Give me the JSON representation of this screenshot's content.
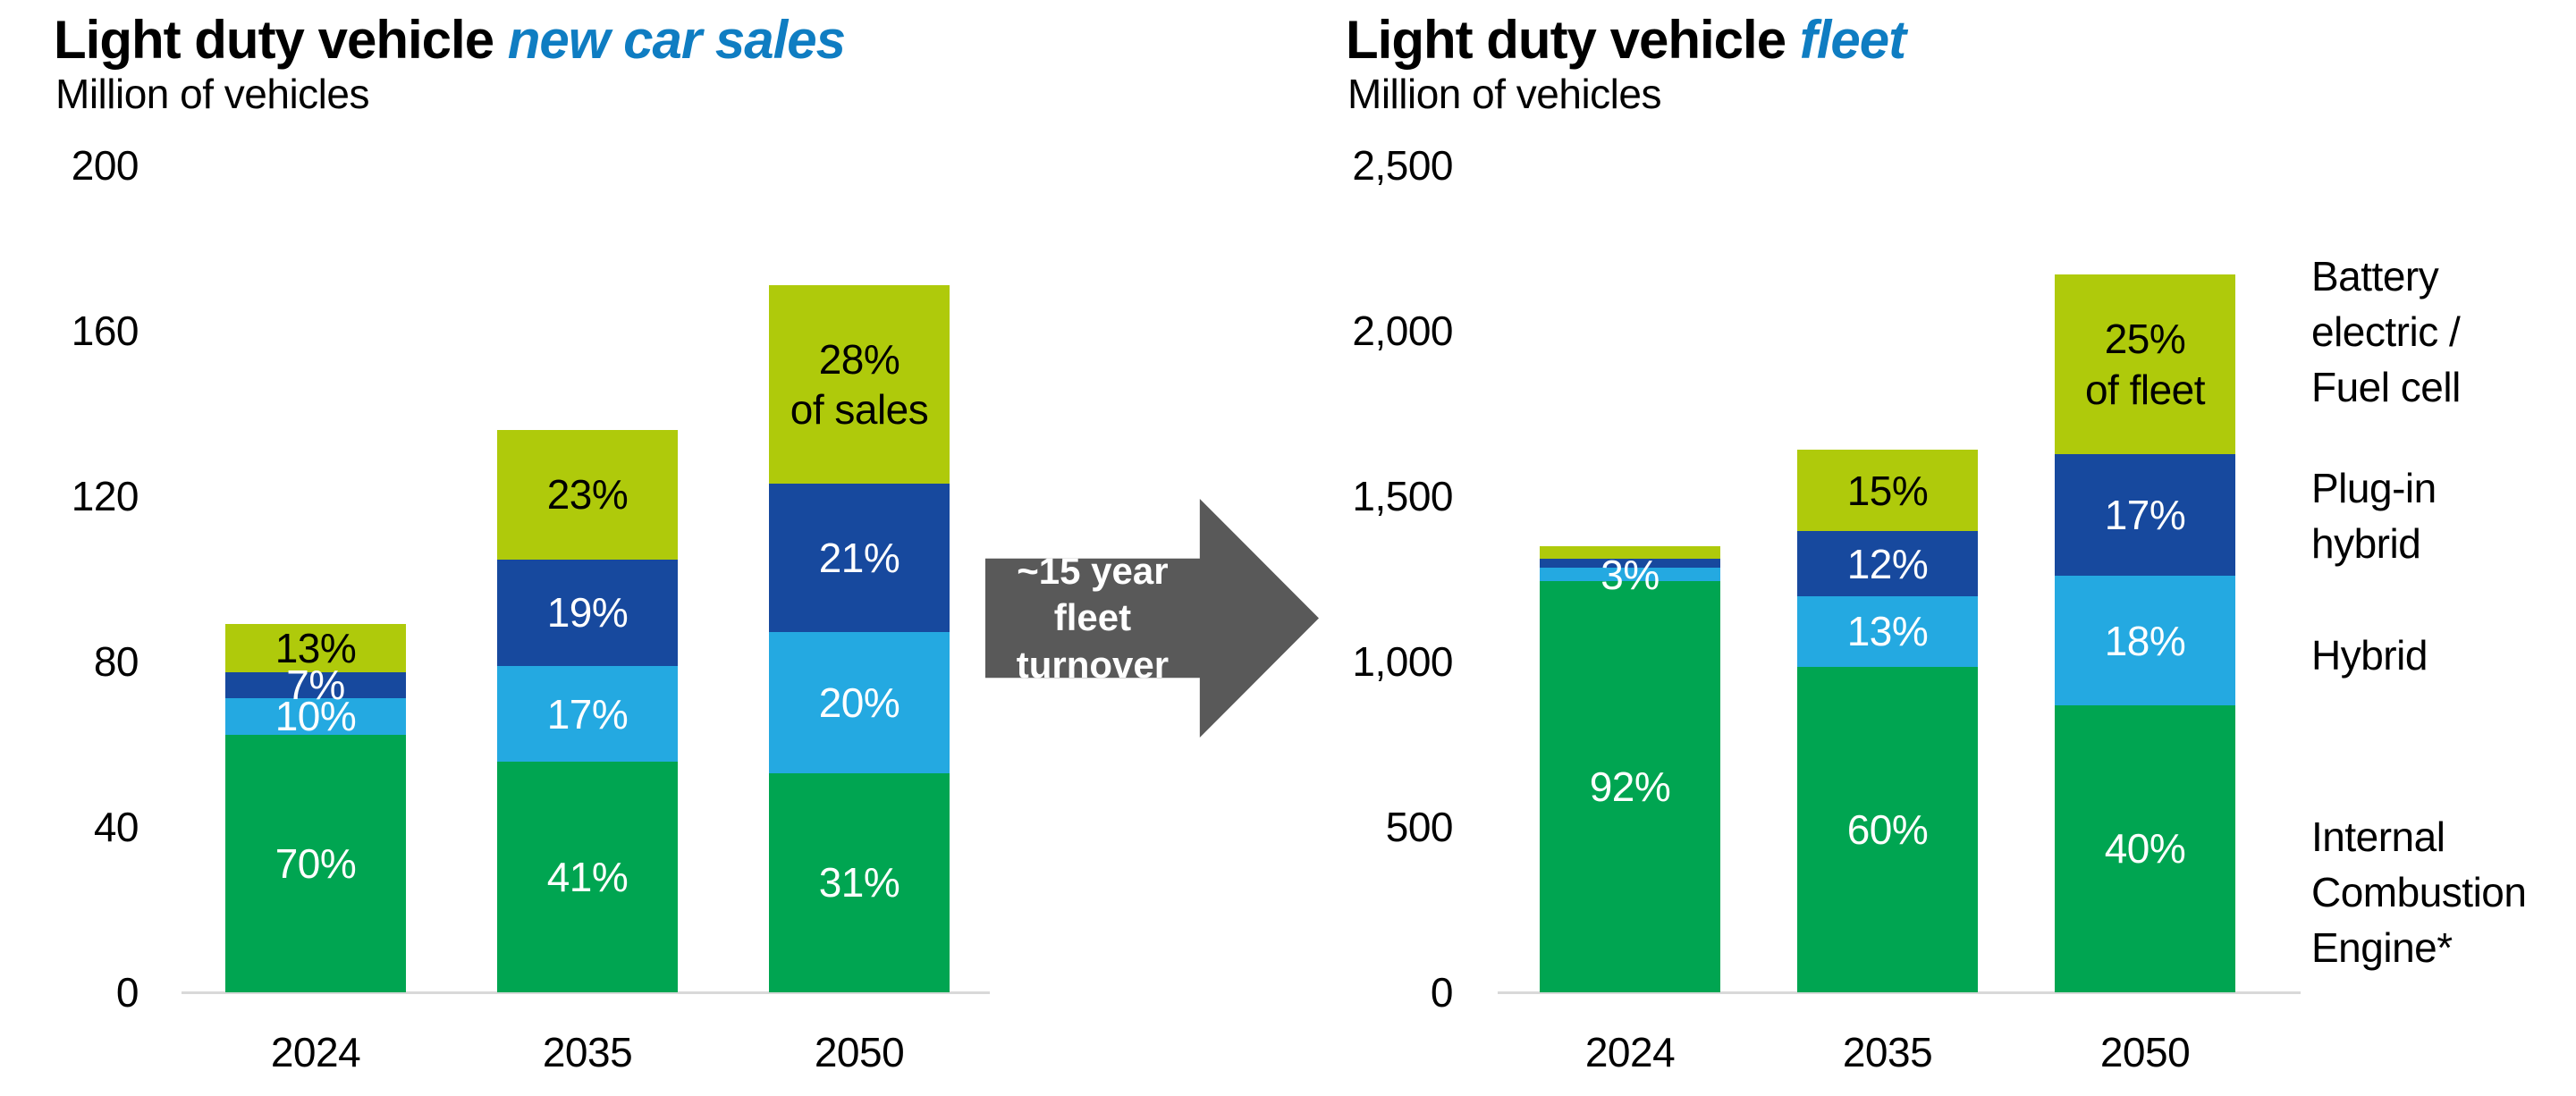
{
  "page": {
    "background": "#FFFFFF"
  },
  "colors": {
    "ice_green": "#00A551",
    "hybrid_light_blue": "#24A9E1",
    "plugin_dark_blue": "#17499E",
    "bev_lime": "#AFCA0B",
    "accent_blue": "#0F7DC2",
    "arrow_gray": "#595959",
    "axis_line_gray": "#D9D9D9",
    "text_black": "#000000",
    "label_white": "#FFFFFF"
  },
  "arrow": {
    "line1": "~15 year fleet",
    "line2": "turnover",
    "fill": "#595959",
    "text_color": "#FFFFFF"
  },
  "chart_data": [
    {
      "type": "bar",
      "stacked": true,
      "title": "Light duty vehicle new car sales",
      "title_prefix": "Light duty vehicle ",
      "title_accent": "new car sales",
      "subtitle": "Million of vehicles",
      "ylabel": "Million of vehicles",
      "categories": [
        "2024",
        "2035",
        "2050"
      ],
      "ylim": [
        0,
        200
      ],
      "yticks": [
        "200",
        "160",
        "120",
        "80",
        "40",
        "0"
      ],
      "grid": false,
      "legend_position": "none",
      "totals_millions": [
        89,
        136,
        171
      ],
      "series": [
        {
          "name": "Internal Combustion Engine*",
          "color": "#00A551",
          "label_color": "#FFFFFF",
          "pct": [
            70,
            41,
            31
          ]
        },
        {
          "name": "Hybrid",
          "color": "#24A9E1",
          "label_color": "#FFFFFF",
          "pct": [
            10,
            17,
            20
          ]
        },
        {
          "name": "Plug-in hybrid",
          "color": "#17499E",
          "label_color": "#FFFFFF",
          "pct": [
            7,
            19,
            21
          ]
        },
        {
          "name": "Battery electric / Fuel cell",
          "color": "#AFCA0B",
          "label_color": "#000000",
          "pct": [
            13,
            23,
            28
          ]
        }
      ],
      "labels": [
        [
          "70%",
          "10%",
          "7%",
          "13%"
        ],
        [
          "41%",
          "17%",
          "19%",
          "23%"
        ],
        [
          "31%",
          "20%",
          "21%",
          "28%\nof sales"
        ]
      ]
    },
    {
      "type": "bar",
      "stacked": true,
      "title": "Light duty vehicle fleet",
      "title_prefix": "Light duty vehicle ",
      "title_accent": "fleet",
      "subtitle": "Million of vehicles",
      "ylabel": "Million of vehicles",
      "categories": [
        "2024",
        "2035",
        "2050"
      ],
      "ylim": [
        0,
        2500
      ],
      "yticks": [
        "2,500",
        "2,000",
        "1,500",
        "1,000",
        "500",
        "0"
      ],
      "grid": false,
      "legend_position": "right",
      "totals_millions": [
        1350,
        1640,
        2170
      ],
      "series": [
        {
          "name": "Internal Combustion Engine*",
          "color": "#00A551",
          "label_color": "#FFFFFF",
          "pct": [
            92,
            60,
            40
          ]
        },
        {
          "name": "Hybrid",
          "color": "#24A9E1",
          "label_color": "#FFFFFF",
          "pct": [
            3,
            13,
            18
          ]
        },
        {
          "name": "Plug-in hybrid",
          "color": "#17499E",
          "label_color": "#FFFFFF",
          "pct": [
            2,
            12,
            17
          ]
        },
        {
          "name": "Battery electric / Fuel cell",
          "color": "#AFCA0B",
          "label_color": "#000000",
          "pct": [
            3,
            15,
            25
          ]
        }
      ],
      "labels": [
        [
          "92%",
          "3%",
          "",
          ""
        ],
        [
          "60%",
          "13%",
          "12%",
          "15%"
        ],
        [
          "40%",
          "18%",
          "17%",
          "25%\nof fleet"
        ]
      ],
      "legend": [
        "Battery\nelectric /\nFuel cell",
        "Plug-in\nhybrid",
        "Hybrid",
        "Internal\nCombustion\nEngine*"
      ]
    }
  ]
}
